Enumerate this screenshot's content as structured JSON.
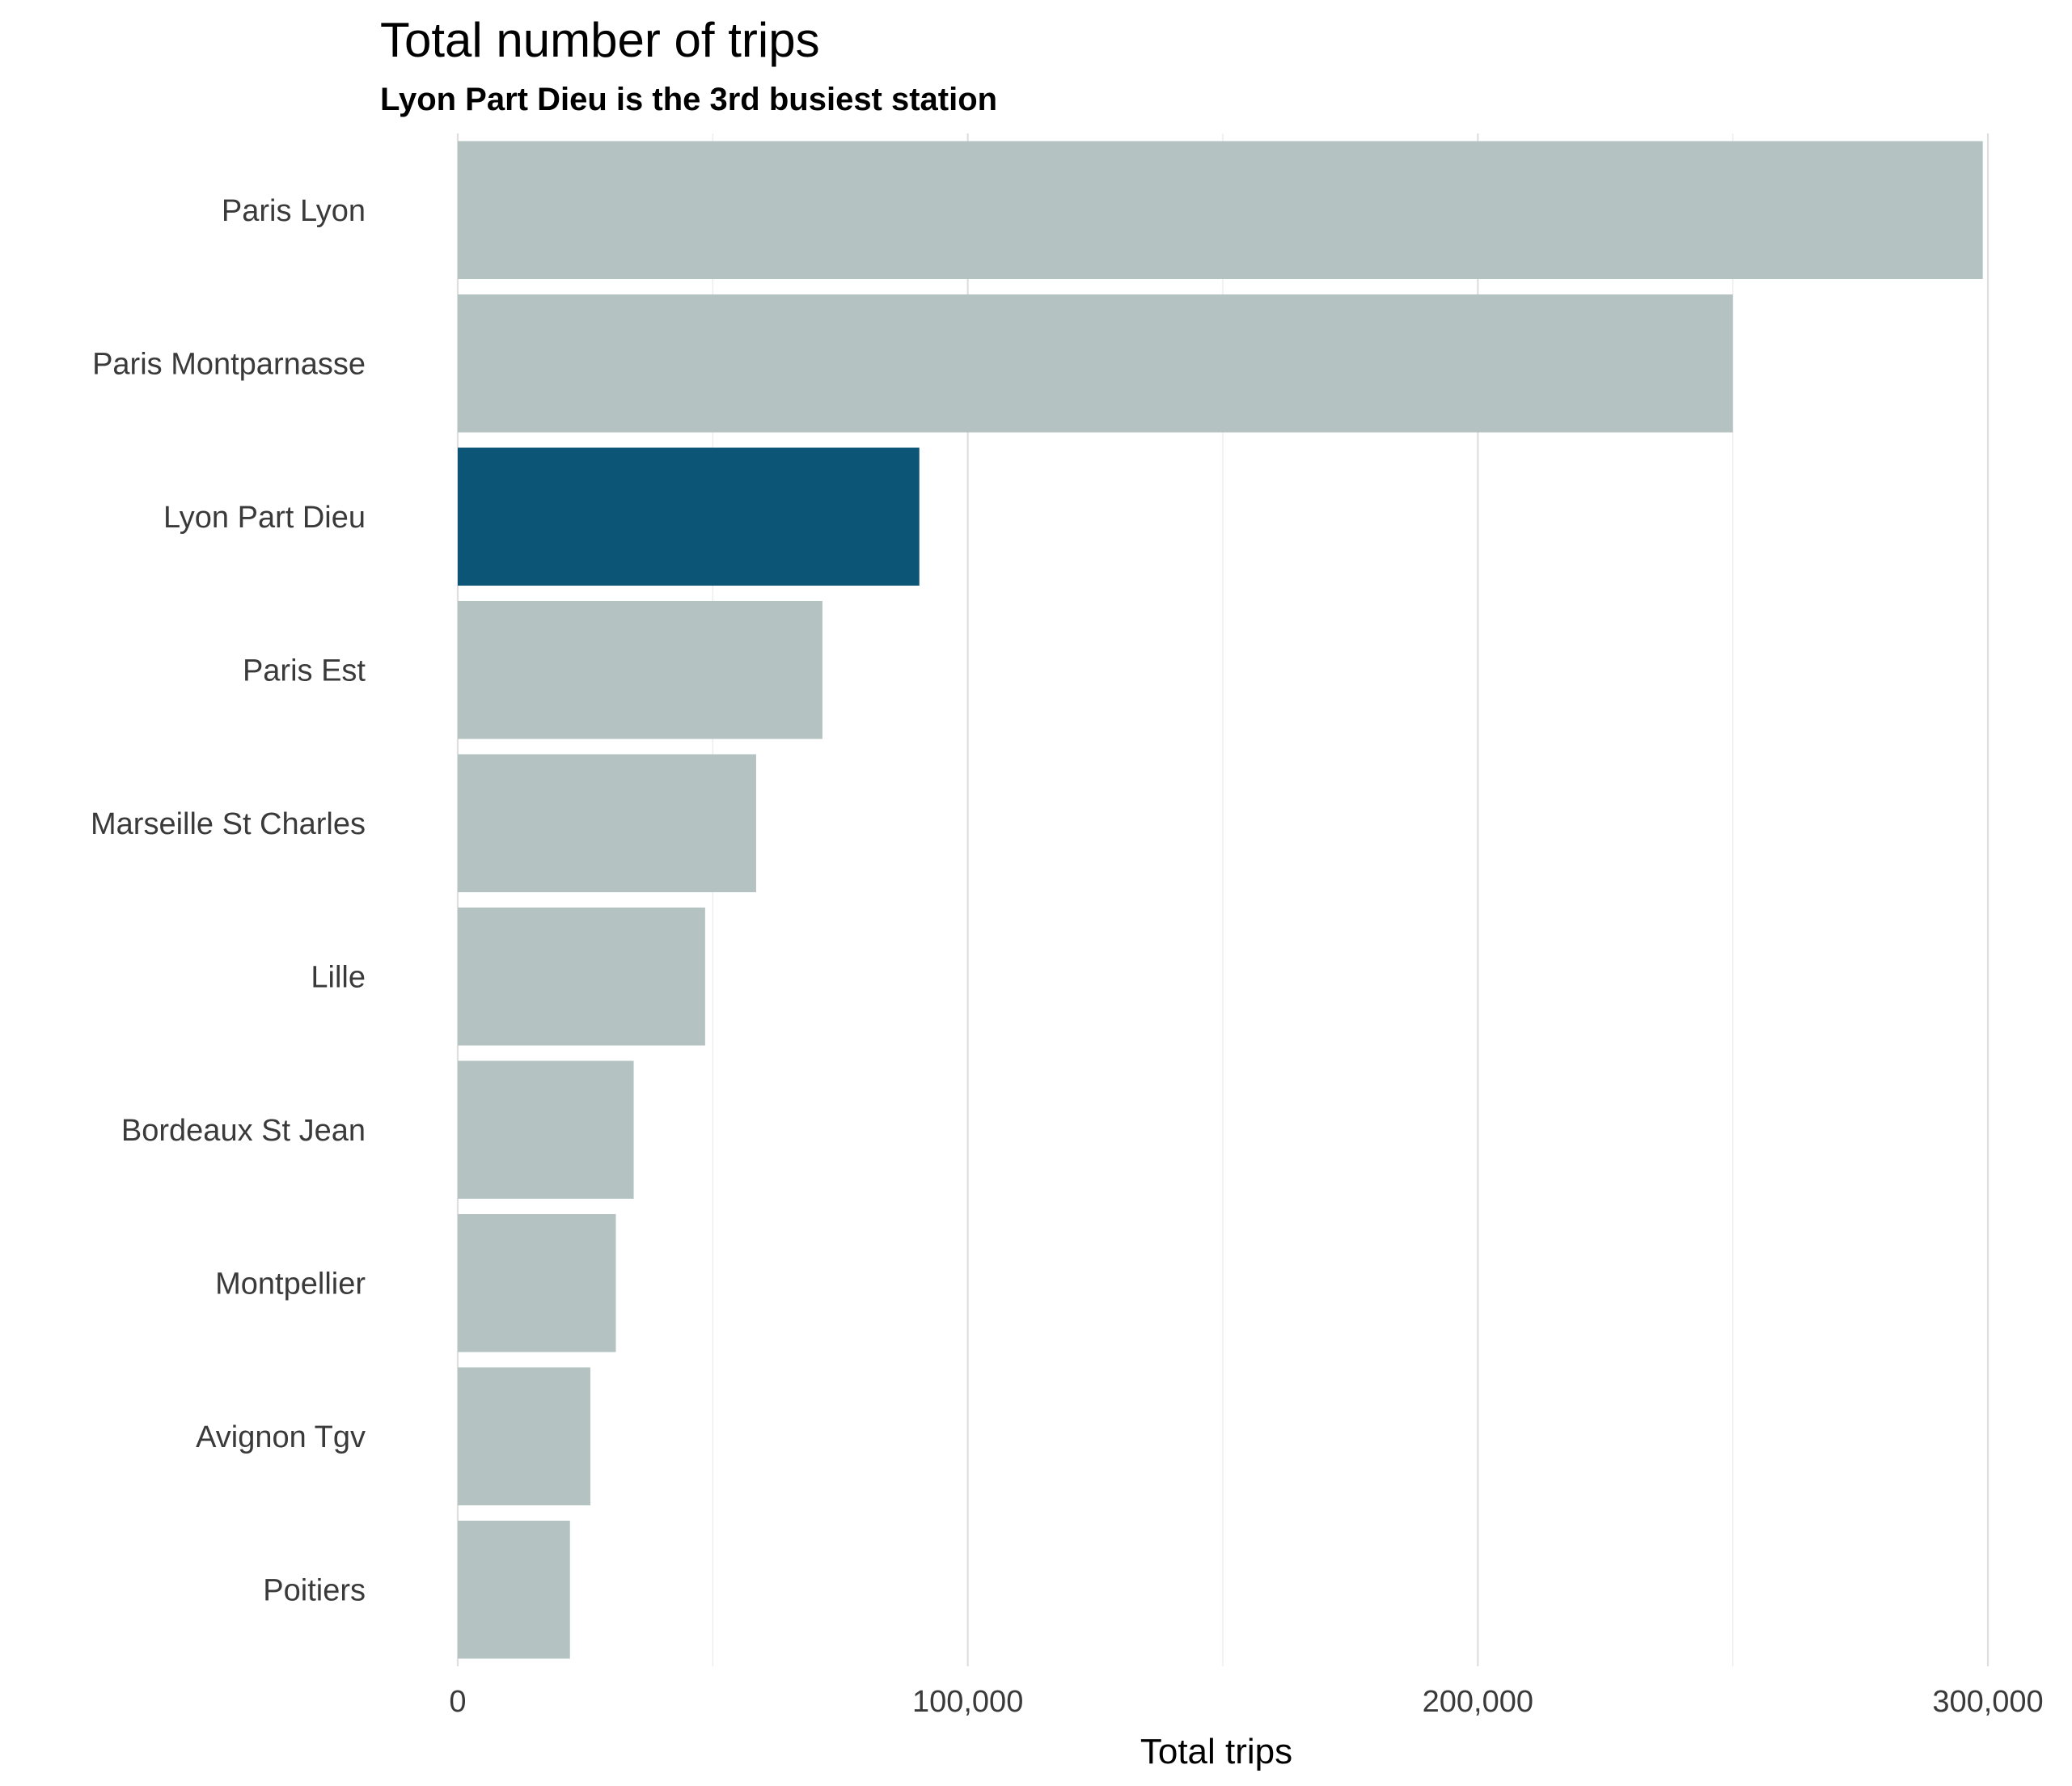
{
  "chart_data": {
    "type": "bar",
    "orientation": "horizontal",
    "title": "Total number of trips",
    "subtitle": "Lyon Part Dieu is the 3rd busiest station",
    "xlabel": "Total trips",
    "ylabel": "",
    "categories": [
      "Paris Lyon",
      "Paris Montparnasse",
      "Lyon Part Dieu",
      "Paris Est",
      "Marseille St Charles",
      "Lille",
      "Bordeaux St Jean",
      "Montpellier",
      "Avignon Tgv",
      "Poitiers"
    ],
    "values": [
      299000,
      250000,
      90500,
      71500,
      58500,
      48500,
      34500,
      31000,
      26000,
      22000
    ],
    "highlight": "Lyon Part Dieu",
    "colors": {
      "bar": "#b4c3c2",
      "highlight": "#0c5576"
    },
    "xlim": [
      0,
      300000
    ],
    "x_ticks": [
      0,
      100000,
      200000,
      300000
    ],
    "x_tick_labels": [
      "0",
      "100,000",
      "200,000",
      "300,000"
    ],
    "grid": true,
    "legend": "none"
  }
}
